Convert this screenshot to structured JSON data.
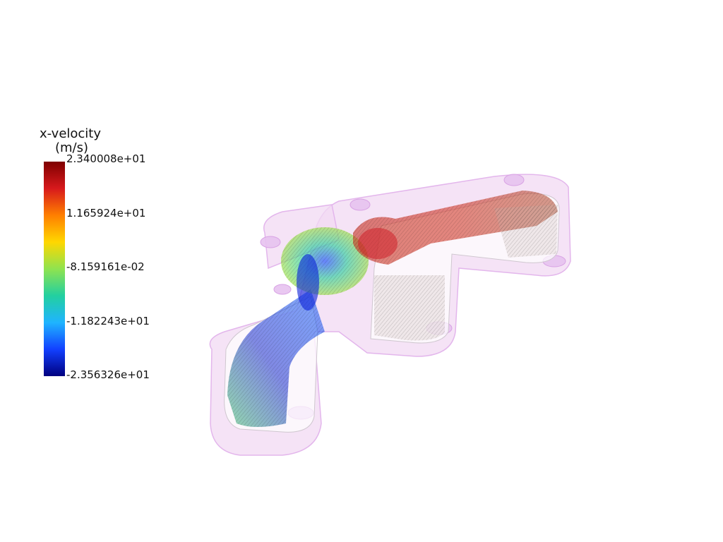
{
  "legend": {
    "title_line1": "x-velocity",
    "title_line2": "(m/s)",
    "tick_labels": [
      "2.340008e+01",
      "1.165924e+01",
      "-8.159161e-02",
      "-1.182243e+01",
      "-2.356326e+01"
    ],
    "colormap": [
      "#7f0000",
      "#d7191c",
      "#ff7f00",
      "#ffd700",
      "#8fe34f",
      "#22d0a0",
      "#1fb4ff",
      "#1240ff",
      "#00007f"
    ]
  },
  "scene": {
    "geometry_color": "#f0d8f2",
    "geometry_edge_color": "#e6b8ee"
  }
}
